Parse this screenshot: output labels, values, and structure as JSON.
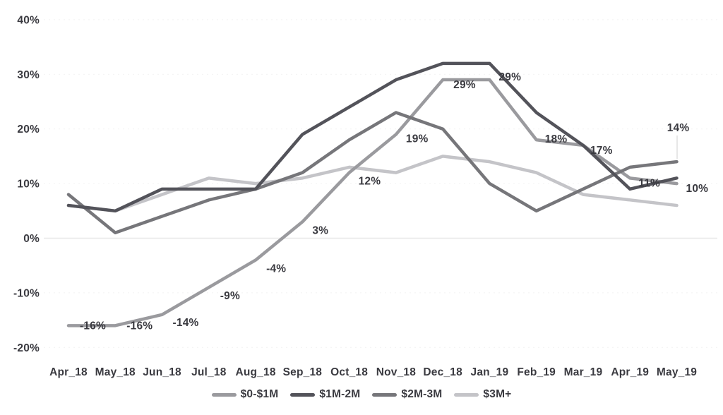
{
  "chart_data": {
    "type": "line",
    "title": "",
    "xlabel": "",
    "ylabel": "",
    "x_labels": [
      "Apr_18",
      "May_18",
      "Jun_18",
      "Jul_18",
      "Aug_18",
      "Sep_18",
      "Oct_18",
      "Nov_18",
      "Dec_18",
      "Jan_19",
      "Feb_19",
      "Mar_19",
      "Apr_19",
      "May_19"
    ],
    "y_axis": {
      "range": [
        -20,
        40
      ],
      "ticks": [
        {
          "label": "40%",
          "value": 40
        },
        {
          "label": "30%",
          "value": 30
        },
        {
          "label": "20%",
          "value": 20
        },
        {
          "label": "10%",
          "value": 10
        },
        {
          "label": "0%",
          "value": 0
        },
        {
          "label": "-10%",
          "value": -10
        },
        {
          "label": "-20%",
          "value": -20
        }
      ]
    },
    "grid": {
      "zero_line": true,
      "other_lines": "faint-dashed"
    },
    "legend_position": "bottom-center",
    "series": [
      {
        "name": "$0-$1M",
        "color": "#9a9a9e",
        "values": [
          -16,
          -16,
          -14,
          -9,
          -4,
          3,
          12,
          19,
          29,
          29,
          18,
          17,
          11,
          10
        ],
        "data_labels": [
          "-16%",
          "-16%",
          "-14%",
          "-9%",
          "-4%",
          "3%",
          "12%",
          "19%",
          "29%",
          "29%",
          "18%",
          "17%",
          "11%",
          "10%"
        ]
      },
      {
        "name": "$1M-2M",
        "color": "#53535a",
        "values": [
          6,
          5,
          9,
          9,
          9,
          19,
          24,
          29,
          32,
          32,
          23,
          17,
          9,
          11
        ]
      },
      {
        "name": "$2M-3M",
        "color": "#76767a",
        "values": [
          8,
          1,
          4,
          7,
          9,
          12,
          18,
          23,
          20,
          10,
          5,
          9,
          13,
          14
        ],
        "end_label": "14%"
      },
      {
        "name": "$3M+",
        "color": "#c4c4c8",
        "values": [
          6,
          5,
          8,
          11,
          10,
          11,
          13,
          12,
          15,
          14,
          12,
          8,
          7,
          6
        ]
      }
    ]
  }
}
